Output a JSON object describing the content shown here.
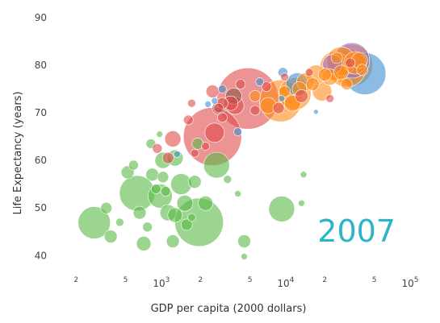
{
  "chart_data": {
    "type": "scatter",
    "x_scale": "log",
    "xlim": [
      120,
      100000
    ],
    "ylim": [
      37,
      92
    ],
    "xlabel": "GDP per capita (2000 dollars)",
    "ylabel": "Life Expectancy (years)",
    "annotation": "2007",
    "grid": false,
    "y_ticks": [
      {
        "value": 40,
        "label": "40"
      },
      {
        "value": 50,
        "label": "50"
      },
      {
        "value": 60,
        "label": "60"
      },
      {
        "value": 70,
        "label": "70"
      },
      {
        "value": 80,
        "label": "80"
      },
      {
        "value": 90,
        "label": "90"
      }
    ],
    "x_major_ticks": [
      {
        "value": 1000,
        "base": "10",
        "exp": "3"
      },
      {
        "value": 10000,
        "base": "10",
        "exp": "4"
      },
      {
        "value": 100000,
        "base": "10",
        "exp": "5"
      }
    ],
    "x_minor_ticks": [
      {
        "value": 200,
        "label": "2"
      },
      {
        "value": 500,
        "label": "5"
      },
      {
        "value": 2000,
        "label": "2"
      },
      {
        "value": 5000,
        "label": "5"
      },
      {
        "value": 20000,
        "label": "2"
      },
      {
        "value": 50000,
        "label": "5"
      }
    ],
    "colors": {
      "africa": "#5ab946",
      "asia": "#e04b4b",
      "europe": "#ff8c1a",
      "americas": "#3f8fd2",
      "oceania": "#9b6fc7",
      "other": "#8c564b"
    },
    "series": [
      {
        "group": "africa",
        "points": [
          {
            "x": 280,
            "y": 46.9,
            "size": 20
          },
          {
            "x": 1950,
            "y": 47.0,
            "size": 30
          },
          {
            "x": 620,
            "y": 53.1,
            "size": 22
          },
          {
            "x": 950,
            "y": 52.5,
            "size": 15
          },
          {
            "x": 1400,
            "y": 55.0,
            "size": 13
          },
          {
            "x": 1100,
            "y": 49.0,
            "size": 10
          },
          {
            "x": 2700,
            "y": 59.0,
            "size": 16
          },
          {
            "x": 9000,
            "y": 49.8,
            "size": 16
          },
          {
            "x": 4500,
            "y": 43.0,
            "size": 8
          },
          {
            "x": 700,
            "y": 42.5,
            "size": 9
          },
          {
            "x": 520,
            "y": 57.5,
            "size": 8
          },
          {
            "x": 820,
            "y": 57.0,
            "size": 8
          },
          {
            "x": 1000,
            "y": 60.0,
            "size": 10
          },
          {
            "x": 1250,
            "y": 60.5,
            "size": 10
          },
          {
            "x": 1900,
            "y": 63.5,
            "size": 7
          },
          {
            "x": 1500,
            "y": 51.0,
            "size": 10
          },
          {
            "x": 1800,
            "y": 55.5,
            "size": 8
          },
          {
            "x": 2200,
            "y": 51.0,
            "size": 9
          },
          {
            "x": 1250,
            "y": 48.5,
            "size": 9
          },
          {
            "x": 650,
            "y": 49.0,
            "size": 8
          },
          {
            "x": 350,
            "y": 50.0,
            "size": 7
          },
          {
            "x": 380,
            "y": 44.0,
            "size": 8
          },
          {
            "x": 450,
            "y": 47.0,
            "size": 5
          },
          {
            "x": 1200,
            "y": 43.0,
            "size": 8
          },
          {
            "x": 1550,
            "y": 46.5,
            "size": 7
          },
          {
            "x": 1000,
            "y": 56.5,
            "size": 7
          },
          {
            "x": 880,
            "y": 54.0,
            "size": 6
          },
          {
            "x": 800,
            "y": 63.5,
            "size": 6
          },
          {
            "x": 4000,
            "y": 53.0,
            "size": 4
          },
          {
            "x": 3300,
            "y": 56.0,
            "size": 5
          },
          {
            "x": 13000,
            "y": 51.0,
            "size": 4
          },
          {
            "x": 13500,
            "y": 57.0,
            "size": 4
          },
          {
            "x": 580,
            "y": 59.0,
            "size": 6
          },
          {
            "x": 940,
            "y": 65.5,
            "size": 4
          },
          {
            "x": 750,
            "y": 46.0,
            "size": 6
          },
          {
            "x": 4500,
            "y": 39.8,
            "size": 4
          },
          {
            "x": 1050,
            "y": 53.5,
            "size": 6
          },
          {
            "x": 1700,
            "y": 48.0,
            "size": 5
          }
        ]
      },
      {
        "group": "asia",
        "points": [
          {
            "x": 2500,
            "y": 65.0,
            "size": 36
          },
          {
            "x": 4800,
            "y": 73.0,
            "size": 38
          },
          {
            "x": 2600,
            "y": 65.8,
            "size": 12
          },
          {
            "x": 1200,
            "y": 64.5,
            "size": 10
          },
          {
            "x": 2500,
            "y": 74.5,
            "size": 8
          },
          {
            "x": 3500,
            "y": 72.0,
            "size": 9
          },
          {
            "x": 3800,
            "y": 71.5,
            "size": 11
          },
          {
            "x": 900,
            "y": 62.5,
            "size": 6
          },
          {
            "x": 1100,
            "y": 60.5,
            "size": 7
          },
          {
            "x": 1600,
            "y": 68.5,
            "size": 6
          },
          {
            "x": 3000,
            "y": 72.0,
            "size": 7
          },
          {
            "x": 4200,
            "y": 76.0,
            "size": 6
          },
          {
            "x": 8500,
            "y": 71.0,
            "size": 7
          },
          {
            "x": 13000,
            "y": 73.5,
            "size": 8
          },
          {
            "x": 22000,
            "y": 73.0,
            "size": 5
          },
          {
            "x": 6800,
            "y": 75.5,
            "size": 6
          },
          {
            "x": 3000,
            "y": 69.0,
            "size": 6
          },
          {
            "x": 2800,
            "y": 71.0,
            "size": 6
          },
          {
            "x": 1800,
            "y": 61.5,
            "size": 5
          },
          {
            "x": 5500,
            "y": 70.5,
            "size": 6
          },
          {
            "x": 15000,
            "y": 78.5,
            "size": 5
          },
          {
            "x": 32000,
            "y": 80.5,
            "size": 6
          },
          {
            "x": 9500,
            "y": 77.5,
            "size": 5
          },
          {
            "x": 2200,
            "y": 63.0,
            "size": 5
          },
          {
            "x": 1700,
            "y": 72.0,
            "size": 5
          }
        ]
      },
      {
        "group": "europe",
        "points": [
          {
            "x": 8800,
            "y": 72.5,
            "size": 26
          },
          {
            "x": 11500,
            "y": 74.0,
            "size": 20
          },
          {
            "x": 30000,
            "y": 79.5,
            "size": 24
          },
          {
            "x": 33000,
            "y": 80.0,
            "size": 26
          },
          {
            "x": 24000,
            "y": 79.8,
            "size": 18
          },
          {
            "x": 27000,
            "y": 80.8,
            "size": 18
          },
          {
            "x": 35000,
            "y": 80.5,
            "size": 14
          },
          {
            "x": 19000,
            "y": 74.5,
            "size": 12
          },
          {
            "x": 17000,
            "y": 78.0,
            "size": 12
          },
          {
            "x": 14000,
            "y": 76.5,
            "size": 11
          },
          {
            "x": 22000,
            "y": 77.5,
            "size": 10
          },
          {
            "x": 38000,
            "y": 81.0,
            "size": 10
          },
          {
            "x": 11000,
            "y": 72.0,
            "size": 10
          },
          {
            "x": 7000,
            "y": 71.5,
            "size": 10
          },
          {
            "x": 12500,
            "y": 75.0,
            "size": 9
          },
          {
            "x": 27000,
            "y": 78.5,
            "size": 9
          },
          {
            "x": 16000,
            "y": 76.0,
            "size": 8
          },
          {
            "x": 20000,
            "y": 78.0,
            "size": 8
          },
          {
            "x": 30000,
            "y": 76.0,
            "size": 7
          },
          {
            "x": 9500,
            "y": 74.5,
            "size": 7
          },
          {
            "x": 5500,
            "y": 73.5,
            "size": 7
          },
          {
            "x": 25000,
            "y": 81.5,
            "size": 7
          },
          {
            "x": 40000,
            "y": 79.0,
            "size": 7
          }
        ]
      },
      {
        "group": "americas",
        "points": [
          {
            "x": 42000,
            "y": 78.2,
            "size": 26
          },
          {
            "x": 12000,
            "y": 76.0,
            "size": 14
          },
          {
            "x": 9200,
            "y": 78.5,
            "size": 6
          },
          {
            "x": 4000,
            "y": 66.0,
            "size": 5
          },
          {
            "x": 3000,
            "y": 75.0,
            "size": 5
          },
          {
            "x": 6000,
            "y": 76.5,
            "size": 5
          },
          {
            "x": 1300,
            "y": 61.3,
            "size": 4
          },
          {
            "x": 2300,
            "y": 71.8,
            "size": 4
          },
          {
            "x": 17000,
            "y": 70.2,
            "size": 3
          },
          {
            "x": 9000,
            "y": 73.0,
            "size": 4
          },
          {
            "x": 2600,
            "y": 72.5,
            "size": 4
          }
        ]
      },
      {
        "group": "oceania",
        "points": [
          {
            "x": 33000,
            "y": 81.0,
            "size": 22
          },
          {
            "x": 23000,
            "y": 80.2,
            "size": 12
          }
        ]
      },
      {
        "group": "other",
        "points": [
          {
            "x": 2800,
            "y": 71.0,
            "size": 8
          },
          {
            "x": 3700,
            "y": 73.5,
            "size": 10
          }
        ]
      }
    ]
  }
}
